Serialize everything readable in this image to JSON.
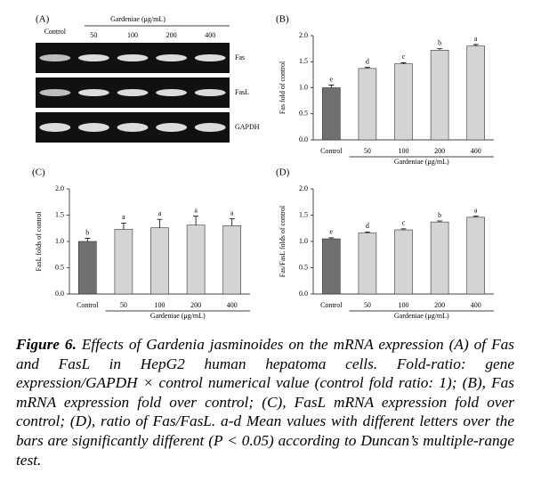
{
  "gel": {
    "panel": "(A)",
    "group_label": "Gardeniae (μg/mL)",
    "lanes": [
      "Control",
      "50",
      "100",
      "200",
      "400"
    ],
    "rows": [
      "Fas",
      "FasL",
      "GAPDH"
    ]
  },
  "chart_data": [
    {
      "type": "bar",
      "panel": "(B)",
      "ylabel": "Fas fold of control",
      "xlabel": "Gardeniae (μg/mL)",
      "categories": [
        "Control",
        "50",
        "100",
        "200",
        "400"
      ],
      "values": [
        1.0,
        1.37,
        1.46,
        1.72,
        1.8
      ],
      "errors": [
        0.05,
        0.02,
        0.02,
        0.03,
        0.03
      ],
      "letters": [
        "e",
        "d",
        "c",
        "b",
        "a"
      ],
      "colors": [
        "#707070",
        "#d4d4d4",
        "#d4d4d4",
        "#d4d4d4",
        "#d4d4d4"
      ],
      "ylim": [
        0,
        2
      ],
      "yticks": [
        {
          "value": 0,
          "label": "0.0"
        },
        {
          "value": 0.5,
          "label": "0.5"
        },
        {
          "value": 1,
          "label": "1.0"
        },
        {
          "value": 1.5,
          "label": "1.5"
        },
        {
          "value": 2,
          "label": "2.0"
        }
      ]
    },
    {
      "type": "bar",
      "panel": "(C)",
      "ylabel": "FasL folds of control",
      "xlabel": "Gardeniae (μg/mL)",
      "categories": [
        "Control",
        "50",
        "100",
        "200",
        "400"
      ],
      "values": [
        1.0,
        1.23,
        1.26,
        1.31,
        1.3
      ],
      "errors": [
        0.06,
        0.12,
        0.16,
        0.17,
        0.13
      ],
      "letters": [
        "b",
        "a",
        "a",
        "a",
        "a"
      ],
      "colors": [
        "#707070",
        "#d4d4d4",
        "#d4d4d4",
        "#d4d4d4",
        "#d4d4d4"
      ],
      "ylim": [
        0,
        2
      ],
      "yticks": [
        {
          "value": 0,
          "label": "0.0"
        },
        {
          "value": 0.5,
          "label": "0.5"
        },
        {
          "value": 1,
          "label": "1.0"
        },
        {
          "value": 1.5,
          "label": "1.5"
        },
        {
          "value": 2,
          "label": "2.0"
        }
      ]
    },
    {
      "type": "bar",
      "panel": "(D)",
      "ylabel": "Fas/FasL folds of control",
      "xlabel": "Gardeniae (μg/mL)",
      "categories": [
        "Control",
        "50",
        "100",
        "200",
        "400"
      ],
      "values": [
        1.05,
        1.16,
        1.22,
        1.37,
        1.46
      ],
      "errors": [
        0.02,
        0.02,
        0.02,
        0.02,
        0.02
      ],
      "letters": [
        "e",
        "d",
        "c",
        "b",
        "a"
      ],
      "colors": [
        "#707070",
        "#d4d4d4",
        "#d4d4d4",
        "#d4d4d4",
        "#d4d4d4"
      ],
      "ylim": [
        0,
        2
      ],
      "yticks": [
        {
          "value": 0,
          "label": "0.0"
        },
        {
          "value": 0.5,
          "label": "0.5"
        },
        {
          "value": 1,
          "label": "1.0"
        },
        {
          "value": 1.5,
          "label": "1.5"
        },
        {
          "value": 2,
          "label": "2.0"
        }
      ]
    }
  ],
  "caption": {
    "label": "Figure 6.",
    "text": " Effects of Gardenia jasminoides on the mRNA expression (A) of Fas and FasL in HepG2 human hepatoma cells. Fold-ratio: gene expression/GAPDH × control numerical value (control fold ratio: 1); (B), Fas mRNA expression fold over control; (C), FasL mRNA expression fold over control; (D), ratio of Fas/FasL. a-d Mean values with different letters over the bars are significantly different (P < 0.05) according to Duncan’s multiple-range test."
  }
}
